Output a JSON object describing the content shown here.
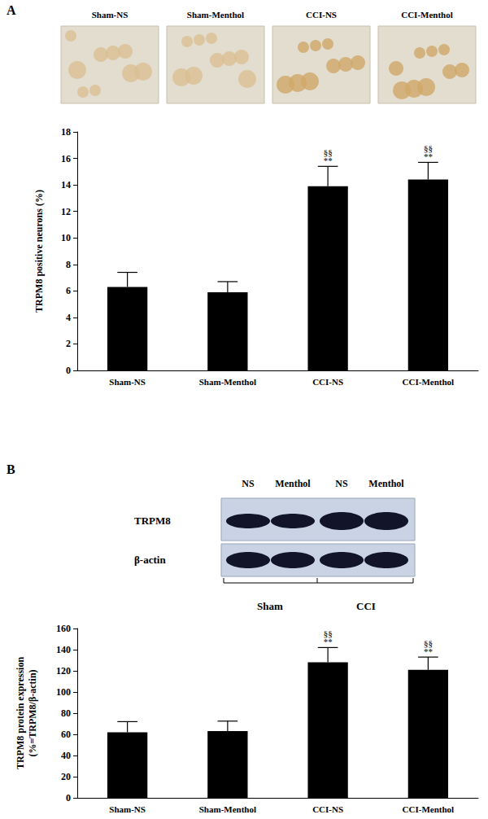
{
  "chart_data": [
    {
      "type": "bar",
      "categories": [
        "Sham-NS",
        "Sham-Menthol",
        "CCI-NS",
        "CCI-Menthol"
      ],
      "values": [
        6.3,
        5.9,
        13.9,
        14.4
      ],
      "errors": [
        1.1,
        0.8,
        1.5,
        1.3
      ],
      "color": "#000000",
      "y_label": "TRPM8 positive neurons (%)",
      "ylim": [
        0,
        18
      ],
      "yticks": [
        0,
        2,
        4,
        6,
        8,
        10,
        12,
        14,
        16,
        18
      ],
      "grid": false,
      "annotations": [
        {
          "category": "CCI-NS",
          "text": "§§\n**"
        },
        {
          "category": "CCI-Menthol",
          "text": "§§\n**"
        }
      ]
    },
    {
      "type": "bar",
      "categories": [
        "Sham-NS",
        "Sham-Menthol",
        "CCI-NS",
        "CCI-Menthol"
      ],
      "values": [
        62,
        63,
        128,
        121
      ],
      "errors": [
        10,
        9.5,
        14,
        12
      ],
      "color": "#000000",
      "y_label": "TRPM8 protein expression\n(%=TRPM8/β-actin)",
      "ylim": [
        0,
        160
      ],
      "yticks": [
        0,
        20,
        40,
        60,
        80,
        100,
        120,
        140,
        160
      ],
      "grid": false,
      "annotations": [
        {
          "category": "CCI-NS",
          "text": "§§\n**"
        },
        {
          "category": "CCI-Menthol",
          "text": "§§\n**"
        }
      ]
    }
  ],
  "figure": {
    "panels": [
      {
        "label": "A",
        "images": [
          "Sham-NS",
          "Sham-Menthol",
          "CCI-NS",
          "CCI-Menthol"
        ]
      },
      {
        "label": "B",
        "blot": {
          "lanes": [
            "NS",
            "Menthol",
            "NS",
            "Menthol"
          ],
          "rows": [
            "TRPM8",
            "β-actin"
          ],
          "groups": [
            "Sham",
            "CCI"
          ]
        }
      }
    ]
  }
}
